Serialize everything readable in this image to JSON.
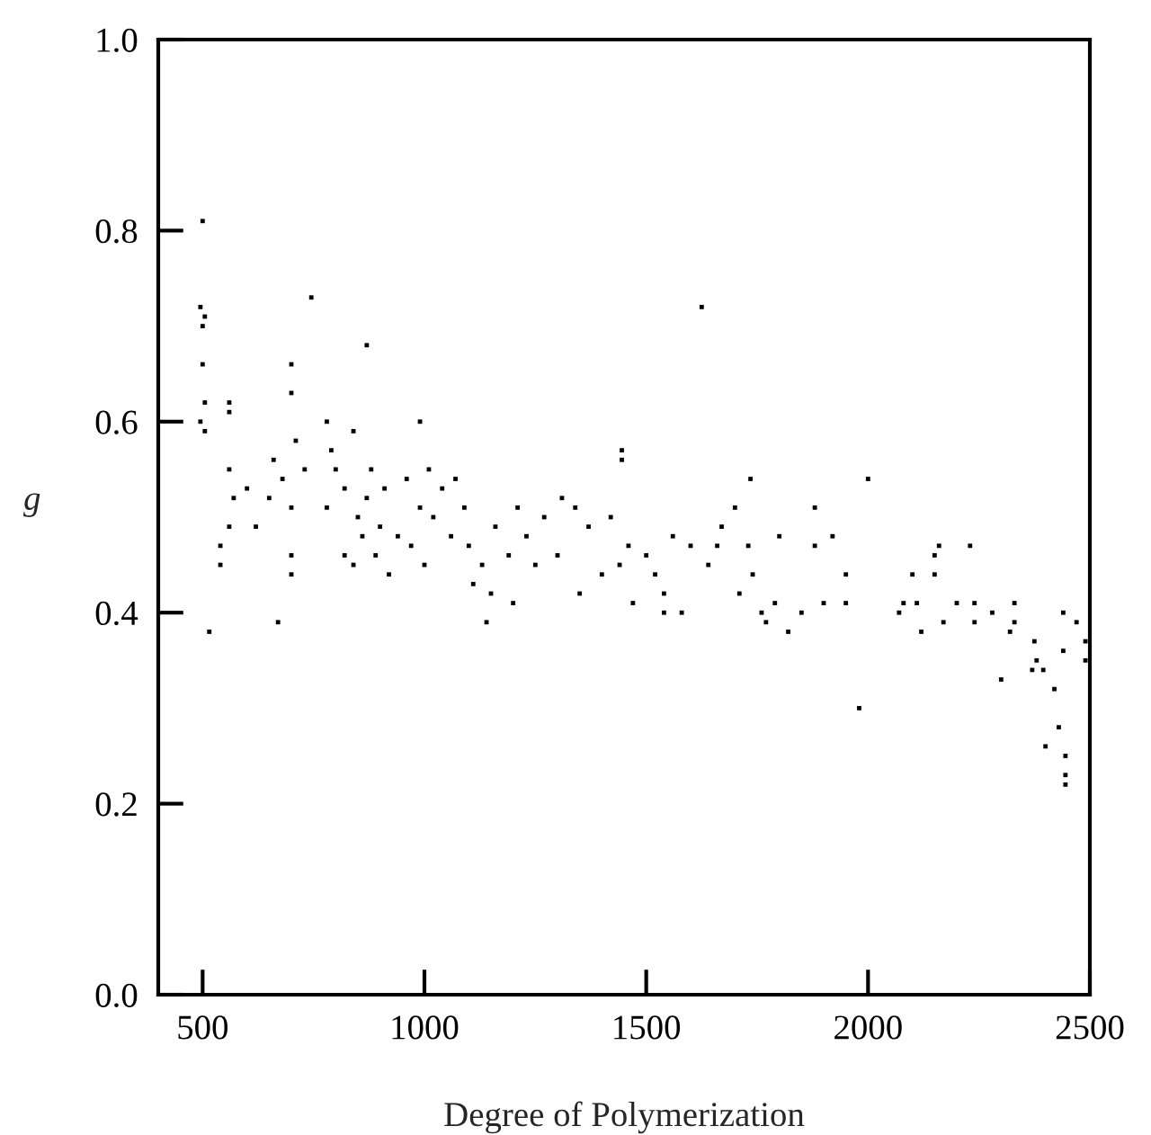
{
  "chart_data": {
    "type": "scatter",
    "xlabel": "Degree of Polymerization",
    "ylabel": "g",
    "xlim": [
      400,
      2500
    ],
    "ylim": [
      0,
      1.0
    ],
    "xticks": [
      500,
      1000,
      1500,
      2000,
      2500
    ],
    "yticks": [
      {
        "value": 0,
        "label": "0.0"
      },
      {
        "value": 0.2,
        "label": "0.2"
      },
      {
        "value": 0.4,
        "label": "0.4"
      },
      {
        "value": 0.6,
        "label": "0.6"
      },
      {
        "value": 0.8,
        "label": "0.8"
      },
      {
        "value": 1.0,
        "label": "1.0"
      }
    ],
    "grid": false,
    "legend": false,
    "marker": "square",
    "series": [
      {
        "color": "#000000",
        "x": [
          500,
          495,
          500,
          505,
          500,
          495,
          505,
          505,
          515,
          560,
          560,
          745,
          870,
          700,
          700,
          780,
          990,
          1625,
          1445,
          1445,
          1735,
          2000,
          1980,
          2300,
          2400,
          2430,
          2445,
          2445,
          2445,
          2420,
          2440,
          2440,
          2470,
          2490,
          2490,
          2375,
          2380,
          2370,
          2395,
          2330,
          2330,
          2320,
          2280,
          2240,
          2240,
          2230,
          2200,
          2170,
          2160,
          2150,
          2150,
          2120,
          2110,
          2100,
          2070,
          2080,
          670,
          700,
          700,
          540,
          540,
          560,
          560,
          570,
          600,
          620,
          650,
          660,
          680,
          700,
          710,
          730,
          780,
          790,
          800,
          820,
          820,
          840,
          840,
          850,
          860,
          870,
          880,
          890,
          900,
          910,
          920,
          940,
          960,
          970,
          990,
          1000,
          1010,
          1020,
          1040,
          1060,
          1070,
          1090,
          1100,
          1110,
          1130,
          1140,
          1150,
          1160,
          1190,
          1200,
          1210,
          1230,
          1250,
          1270,
          1300,
          1310,
          1340,
          1350,
          1370,
          1400,
          1420,
          1440,
          1460,
          1470,
          1500,
          1520,
          1540,
          1540,
          1560,
          1580,
          1600,
          1640,
          1660,
          1670,
          1700,
          1710,
          1730,
          1740,
          1760,
          1770,
          1790,
          1800,
          1820,
          1850,
          1880,
          1880,
          1900,
          1920,
          1950,
          1950
        ],
        "values": [
          0.81,
          0.72,
          0.7,
          0.71,
          0.66,
          0.6,
          0.62,
          0.59,
          0.38,
          0.62,
          0.61,
          0.73,
          0.68,
          0.66,
          0.63,
          0.6,
          0.6,
          0.72,
          0.57,
          0.56,
          0.54,
          0.54,
          0.3,
          0.33,
          0.26,
          0.28,
          0.22,
          0.23,
          0.25,
          0.32,
          0.36,
          0.4,
          0.39,
          0.35,
          0.37,
          0.37,
          0.35,
          0.34,
          0.34,
          0.41,
          0.39,
          0.38,
          0.4,
          0.41,
          0.39,
          0.47,
          0.41,
          0.39,
          0.47,
          0.46,
          0.44,
          0.38,
          0.41,
          0.44,
          0.4,
          0.41,
          0.39,
          0.44,
          0.46,
          0.45,
          0.47,
          0.49,
          0.55,
          0.52,
          0.53,
          0.49,
          0.52,
          0.56,
          0.54,
          0.51,
          0.58,
          0.55,
          0.51,
          0.57,
          0.55,
          0.53,
          0.46,
          0.59,
          0.45,
          0.5,
          0.48,
          0.52,
          0.55,
          0.46,
          0.49,
          0.53,
          0.44,
          0.48,
          0.54,
          0.47,
          0.51,
          0.45,
          0.55,
          0.5,
          0.53,
          0.48,
          0.54,
          0.51,
          0.47,
          0.43,
          0.45,
          0.39,
          0.42,
          0.49,
          0.46,
          0.41,
          0.51,
          0.48,
          0.45,
          0.5,
          0.46,
          0.52,
          0.51,
          0.42,
          0.49,
          0.44,
          0.5,
          0.45,
          0.47,
          0.41,
          0.46,
          0.44,
          0.42,
          0.4,
          0.48,
          0.4,
          0.47,
          0.45,
          0.47,
          0.49,
          0.51,
          0.42,
          0.47,
          0.44,
          0.4,
          0.39,
          0.41,
          0.48,
          0.38,
          0.4,
          0.51,
          0.47,
          0.41,
          0.48,
          0.41,
          0.44
        ]
      }
    ]
  }
}
